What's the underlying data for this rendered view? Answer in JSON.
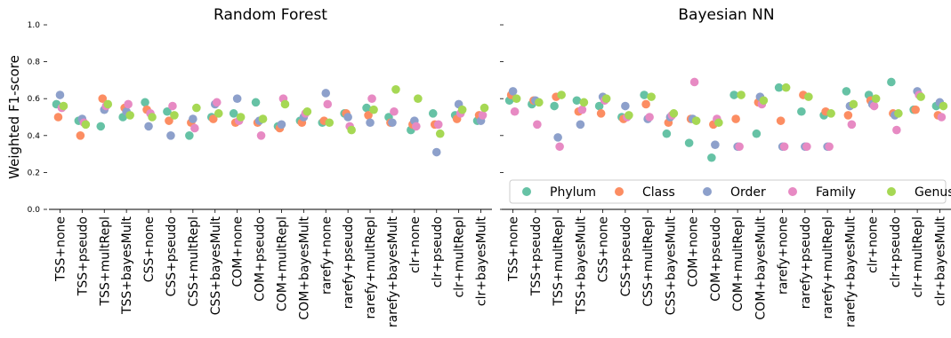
{
  "chart_data": {
    "type": "scatter",
    "ylabel": "Weighted F1-score",
    "ylim": [
      0.0,
      1.0
    ],
    "yticks": [
      "0.0",
      "0.2",
      "0.4",
      "0.6",
      "0.8",
      "1.0"
    ],
    "categories": [
      "TSS+none",
      "TSS+pseudo",
      "TSS+multRepl",
      "TSS+bayesMult",
      "CSS+none",
      "CSS+pseudo",
      "CSS+multRepl",
      "CSS+bayesMult",
      "COM+none",
      "COM+pseudo",
      "COM+multRepl",
      "COM+bayesMult",
      "rarefy+none",
      "rarefy+pseudo",
      "rarefy+multRepl",
      "rarefy+bayesMult",
      "clr+none",
      "clr+pseudo",
      "clr+multRepl",
      "clr+bayesMult"
    ],
    "series_names": [
      "Phylum",
      "Class",
      "Order",
      "Family",
      "Genus"
    ],
    "colors": [
      "#66c2a5",
      "#fc8d62",
      "#8da0cb",
      "#e78ac3",
      "#a6d854"
    ],
    "legend_location": "lower-right of second panel",
    "panels": [
      {
        "title": "Random Forest",
        "series": [
          {
            "name": "Phylum",
            "values": [
              0.57,
              0.48,
              0.45,
              0.5,
              0.58,
              0.53,
              0.4,
              0.5,
              0.52,
              0.58,
              0.45,
              0.48,
              0.47,
              0.52,
              0.55,
              0.5,
              0.43,
              0.52,
              0.51,
              0.48
            ]
          },
          {
            "name": "Class",
            "values": [
              0.5,
              0.4,
              0.6,
              0.55,
              0.54,
              0.48,
              0.47,
              0.49,
              0.47,
              0.47,
              0.44,
              0.47,
              0.48,
              0.52,
              0.51,
              0.47,
              0.46,
              0.46,
              0.49,
              0.51
            ]
          },
          {
            "name": "Order",
            "values": [
              0.62,
              0.49,
              0.54,
              0.53,
              0.45,
              0.4,
              0.49,
              0.57,
              0.6,
              0.48,
              0.46,
              0.5,
              0.63,
              0.5,
              0.47,
              0.47,
              0.48,
              0.31,
              0.57,
              0.48
            ]
          },
          {
            "name": "Family",
            "values": [
              0.55,
              0.47,
              0.56,
              0.57,
              0.52,
              0.56,
              0.44,
              0.58,
              0.48,
              0.4,
              0.6,
              0.52,
              0.57,
              0.45,
              0.6,
              0.53,
              0.45,
              0.46,
              0.52,
              0.51
            ]
          },
          {
            "name": "Genus",
            "values": [
              0.56,
              0.46,
              0.57,
              0.51,
              0.5,
              0.51,
              0.55,
              0.52,
              0.5,
              0.49,
              0.57,
              0.53,
              0.47,
              0.43,
              0.54,
              0.65,
              0.6,
              0.41,
              0.54,
              0.55
            ]
          }
        ]
      },
      {
        "title": "Bayesian NN",
        "series": [
          {
            "name": "Phylum",
            "values": [
              0.59,
              0.57,
              0.56,
              0.59,
              0.56,
              0.5,
              0.62,
              0.41,
              0.36,
              0.28,
              0.62,
              0.41,
              0.66,
              0.53,
              0.51,
              0.64,
              0.62,
              0.69,
              0.54,
              0.56
            ]
          },
          {
            "name": "Class",
            "values": [
              0.62,
              0.59,
              0.61,
              0.53,
              0.52,
              0.49,
              0.57,
              0.47,
              0.49,
              0.46,
              0.49,
              0.58,
              0.48,
              0.62,
              0.53,
              0.51,
              0.59,
              0.52,
              0.54,
              0.51
            ]
          },
          {
            "name": "Order",
            "values": [
              0.64,
              0.59,
              0.39,
              0.46,
              0.61,
              0.56,
              0.49,
              0.5,
              0.49,
              0.35,
              0.34,
              0.61,
              0.34,
              0.34,
              0.34,
              0.56,
              0.57,
              0.51,
              0.64,
              0.58
            ]
          },
          {
            "name": "Family",
            "values": [
              0.53,
              0.46,
              0.34,
              0.54,
              0.59,
              0.5,
              0.5,
              0.51,
              0.69,
              0.49,
              0.34,
              0.57,
              0.34,
              0.34,
              0.34,
              0.46,
              0.56,
              0.43,
              0.62,
              0.5
            ]
          },
          {
            "name": "Genus",
            "values": [
              0.6,
              0.58,
              0.62,
              0.58,
              0.6,
              0.51,
              0.61,
              0.52,
              0.48,
              0.47,
              0.62,
              0.59,
              0.66,
              0.61,
              0.52,
              0.57,
              0.6,
              0.52,
              0.61,
              0.56
            ]
          }
        ]
      }
    ]
  }
}
